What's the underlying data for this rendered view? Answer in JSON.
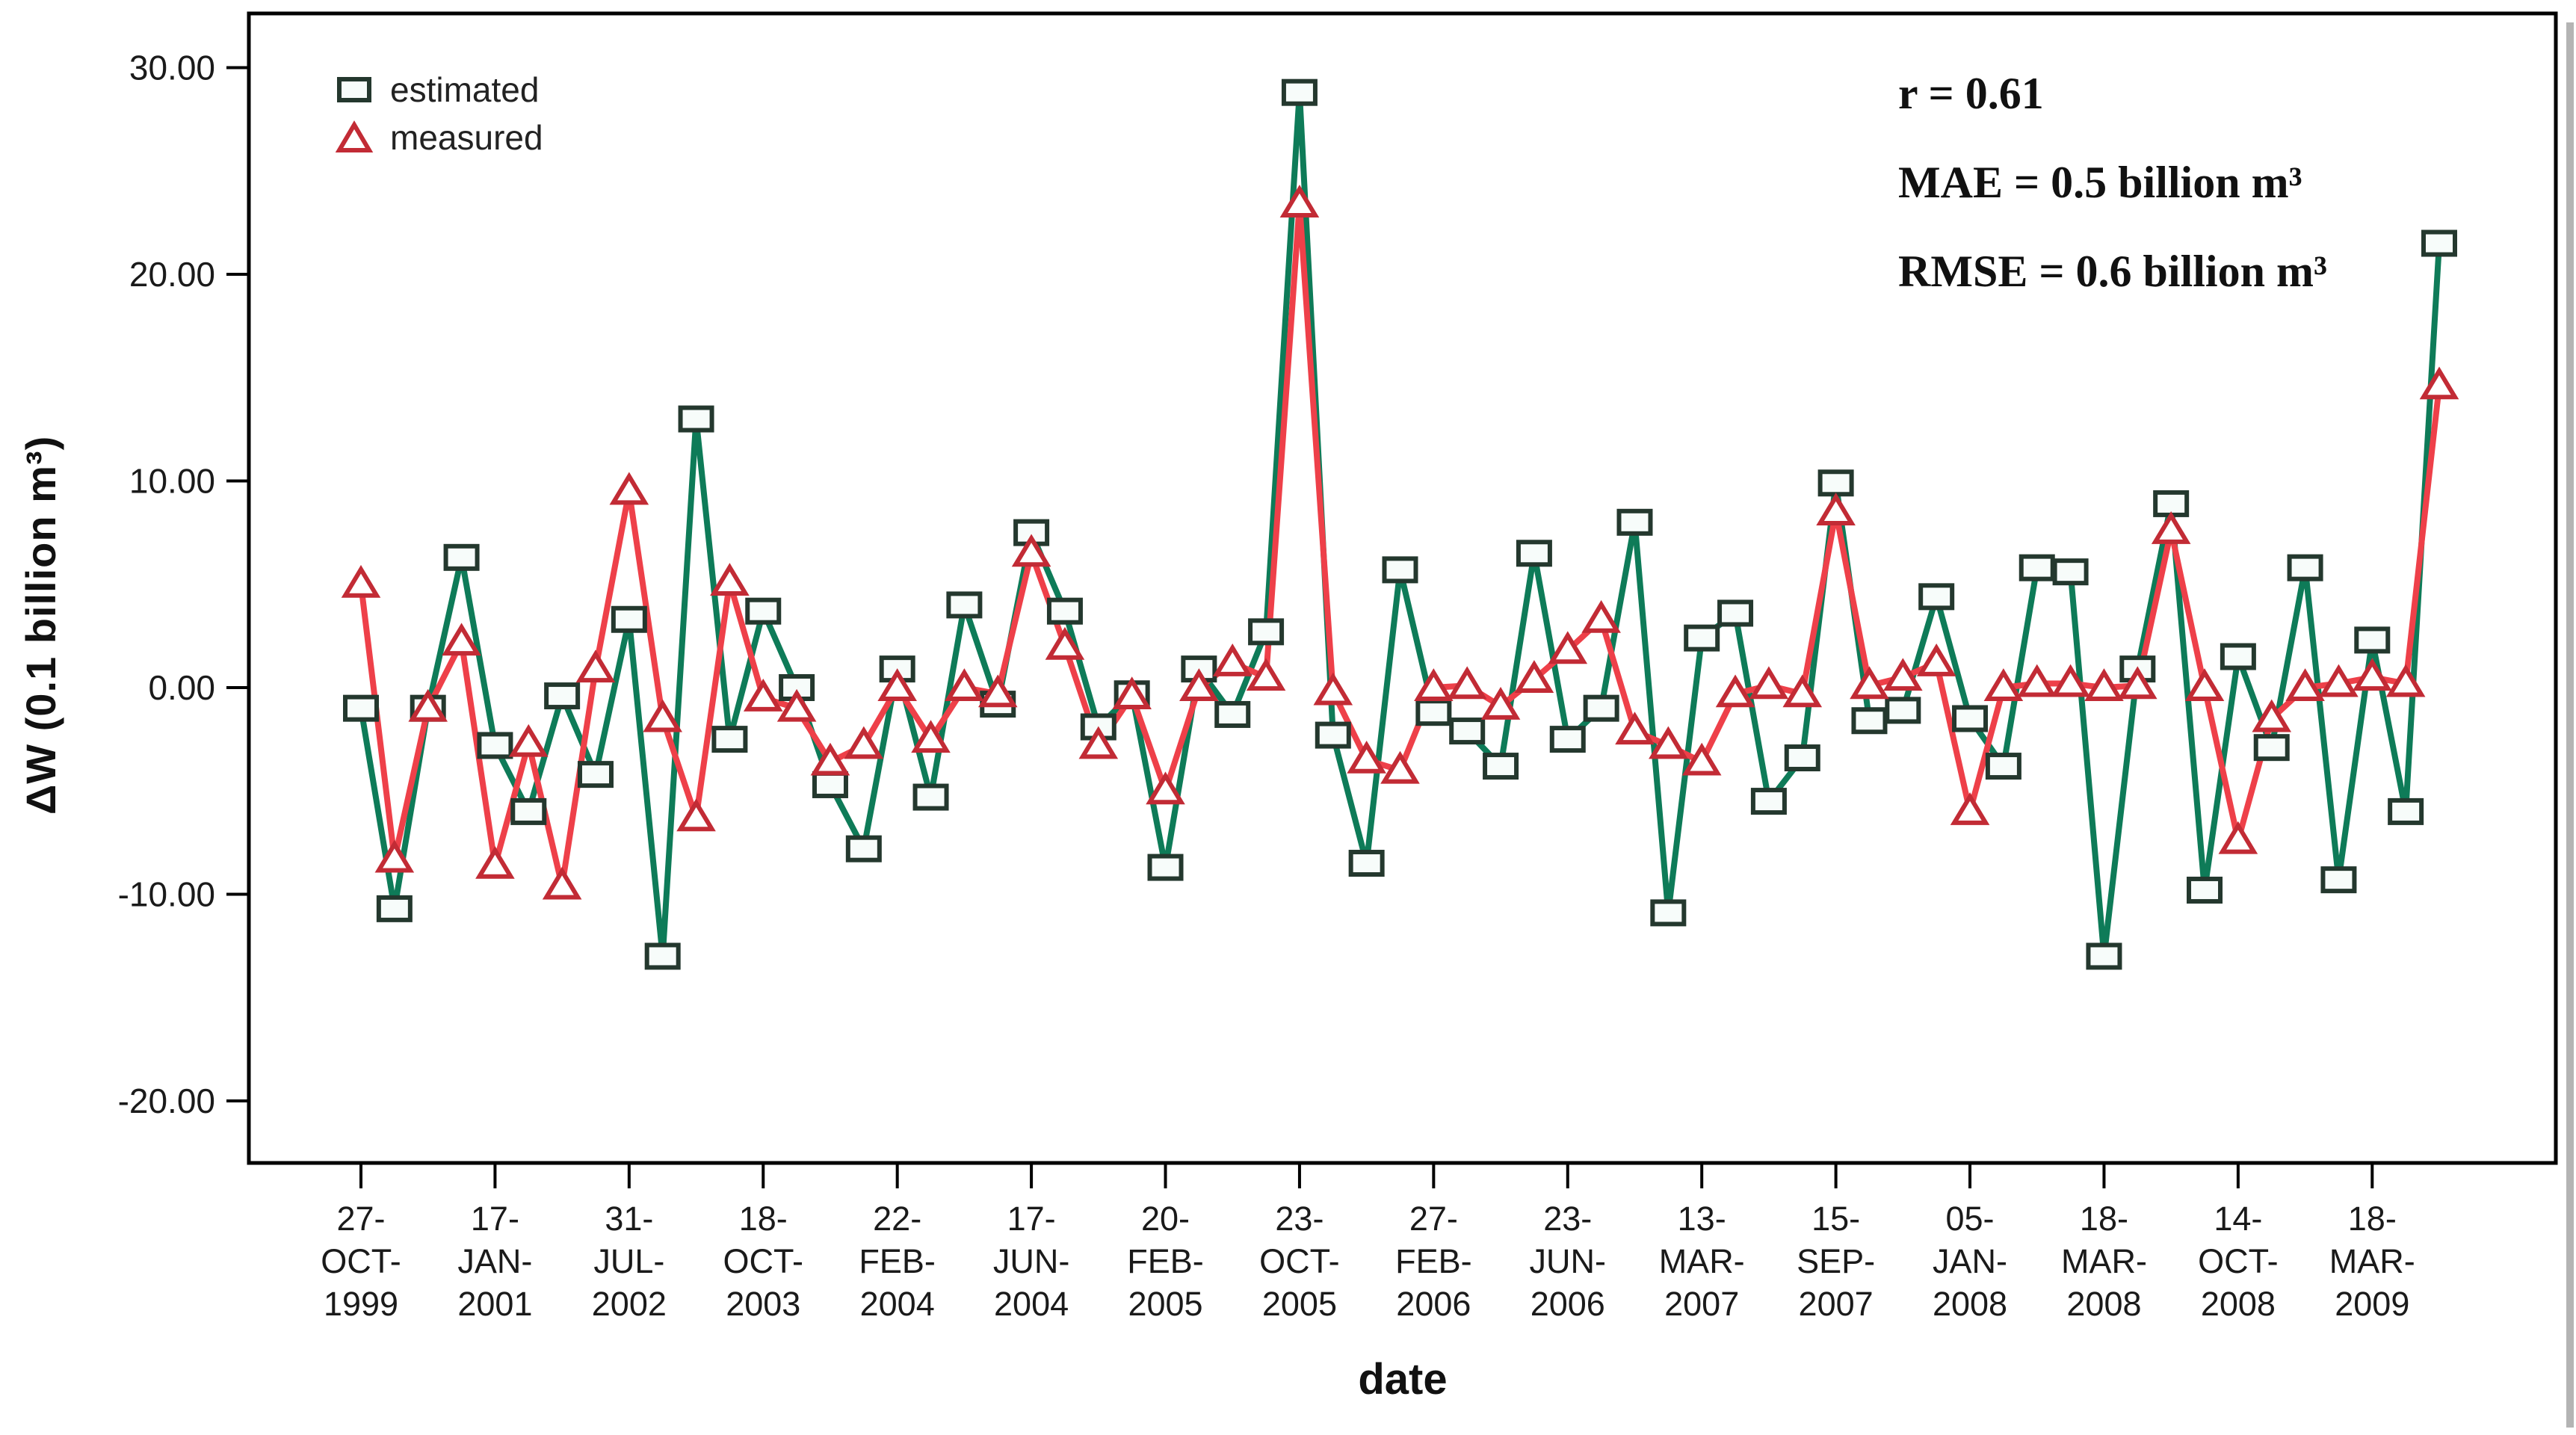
{
  "axes": {
    "x_title": "date",
    "y_title": "ΔW (0.1 billion m³)"
  },
  "legend": {
    "estimated": "estimated",
    "measured": "measured"
  },
  "stats": {
    "r": "r = 0.61",
    "mae": "MAE = 0.5 billion m³",
    "rmse": "RMSE = 0.6 billion m³"
  },
  "chart_data": {
    "type": "line",
    "title": "",
    "xlabel": "date",
    "ylabel": "ΔW (0.1 billion m³)",
    "ylim": [
      -23,
      31
    ],
    "yticks": [
      30,
      20,
      10,
      0,
      -10,
      -20
    ],
    "ytick_labels": [
      "30.00",
      "20.00",
      "10.00",
      "0.00",
      "-10.00",
      "-20.00"
    ],
    "grid": false,
    "legend_position": "top-left-inside",
    "n_points": 63,
    "x_tick_every": 4,
    "x_tick_labels": [
      "27-OCT-1999",
      "17-JAN-2001",
      "31-JUL-2002",
      "18-OCT-2003",
      "22-FEB-2004",
      "17-JUN-2004",
      "20-FEB-2005",
      "23-OCT-2005",
      "27-FEB-2006",
      "23-JUN-2006",
      "13-MAR-2007",
      "15-SEP-2007",
      "05-JAN-2008",
      "18-MAR-2008",
      "14-OCT-2008",
      "18-MAR-2009"
    ],
    "series": [
      {
        "name": "estimated",
        "marker": "square",
        "line_color": "#0E7B58",
        "marker_stroke": "#24382E",
        "marker_fill": "#F7FCFA",
        "values": [
          -1.0,
          -10.7,
          -1.0,
          6.3,
          -2.8,
          -6.0,
          -0.4,
          -4.2,
          3.3,
          -13.0,
          13.0,
          -2.5,
          3.7,
          0.0,
          -4.7,
          -7.8,
          0.9,
          -5.3,
          4.0,
          -0.8,
          7.5,
          3.7,
          -1.9,
          -0.3,
          -8.7,
          0.9,
          -1.3,
          2.7,
          28.8,
          -2.3,
          -8.5,
          5.7,
          -1.2,
          -2.1,
          -3.8,
          6.5,
          -2.5,
          -1.0,
          8.0,
          -10.9,
          2.4,
          3.6,
          -5.5,
          -3.4,
          9.9,
          -1.6,
          -1.1,
          4.4,
          -1.5,
          -3.8,
          5.8,
          5.6,
          -13.0,
          0.9,
          8.9,
          -9.8,
          1.5,
          -2.9,
          5.8,
          -9.3,
          2.3,
          -6.0,
          21.5
        ]
      },
      {
        "name": "measured",
        "marker": "triangle",
        "line_color": "#EE4049",
        "marker_stroke": "#C22B35",
        "marker_fill": "#FFFFFF",
        "values": [
          5.0,
          -8.3,
          -1.0,
          2.2,
          -8.6,
          -2.7,
          -9.6,
          0.9,
          9.5,
          -1.5,
          -6.3,
          5.1,
          -0.5,
          -1.0,
          -3.6,
          -2.8,
          0.0,
          -2.5,
          0.0,
          -0.3,
          6.5,
          2.0,
          -2.8,
          -0.4,
          -5.0,
          0.0,
          1.2,
          0.5,
          23.4,
          -0.2,
          -3.5,
          -4.0,
          0.0,
          0.1,
          -0.9,
          0.4,
          1.8,
          3.3,
          -2.1,
          -2.8,
          -3.6,
          -0.3,
          0.1,
          -0.3,
          8.5,
          0.1,
          0.5,
          1.2,
          -6.0,
          0.0,
          0.2,
          0.2,
          0.0,
          0.1,
          7.6,
          0.0,
          -7.4,
          -1.5,
          0.0,
          0.2,
          0.5,
          0.2,
          14.6
        ]
      }
    ],
    "annotations": [
      "r = 0.61",
      "MAE = 0.5 billion m³",
      "RMSE = 0.6 billion m³"
    ]
  }
}
